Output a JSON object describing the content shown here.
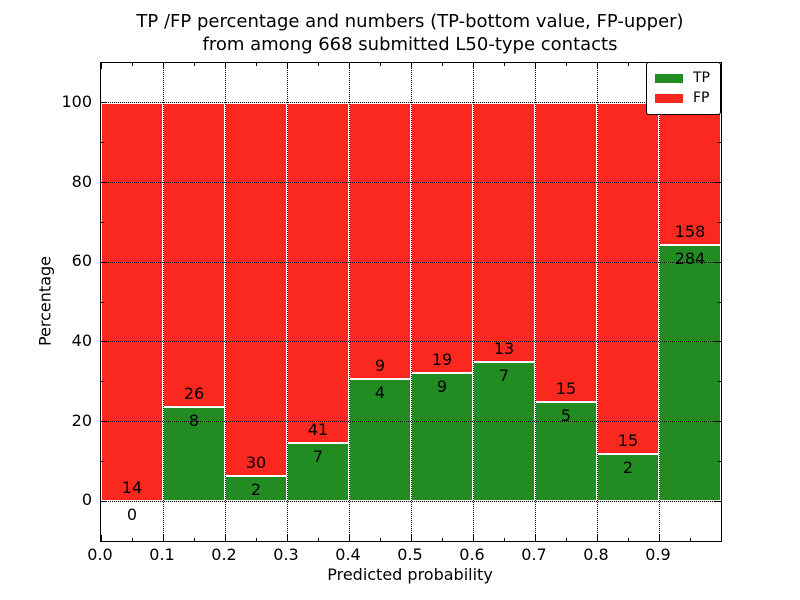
{
  "figure": {
    "title_line1": "TP /FP percentage and numbers (TP-bottom value, FP-upper)",
    "title_line2": "from among 668 submitted L50-type contacts",
    "xlabel": "Predicted probability",
    "ylabel": "Percentage"
  },
  "chart_data": {
    "type": "bar",
    "stacked": true,
    "normalized": "each bin stacked to 100%",
    "title": "TP /FP percentage and numbers (TP-bottom value, FP-upper) from among 668 submitted L50-type contacts",
    "xlabel": "Predicted probability",
    "ylabel": "Percentage",
    "total_contacts": 668,
    "bin_width": 0.1,
    "categories": [
      "0.0-0.1",
      "0.1-0.2",
      "0.2-0.3",
      "0.3-0.4",
      "0.4-0.5",
      "0.5-0.6",
      "0.6-0.7",
      "0.7-0.8",
      "0.8-0.9",
      "0.9-1.0"
    ],
    "series": [
      {
        "name": "TP",
        "color": "#228b22",
        "counts": [
          0,
          8,
          2,
          7,
          4,
          9,
          7,
          5,
          2,
          284
        ]
      },
      {
        "name": "FP",
        "color": "#fa281e",
        "counts": [
          14,
          26,
          30,
          41,
          9,
          19,
          13,
          15,
          15,
          158
        ]
      }
    ],
    "tp_percent_of_bin": [
      0.0,
      23.5,
      6.3,
      14.6,
      30.8,
      32.1,
      35.0,
      25.0,
      11.8,
      64.3
    ],
    "xlim": [
      0.0,
      1.0
    ],
    "ylim": [
      -10,
      110
    ],
    "xticks": [
      "0.0",
      "0.1",
      "0.2",
      "0.3",
      "0.4",
      "0.5",
      "0.6",
      "0.7",
      "0.8",
      "0.9"
    ],
    "yticks": [
      0,
      20,
      40,
      60,
      80,
      100
    ],
    "y_minor_ticks": [
      10,
      30,
      50,
      70,
      90
    ],
    "grid": "dotted black, on both axes at major ticks",
    "legend_position": "upper right"
  },
  "legend": {
    "items": [
      {
        "label": "TP",
        "color": "#228b22"
      },
      {
        "label": "FP",
        "color": "#fa281e"
      }
    ]
  }
}
